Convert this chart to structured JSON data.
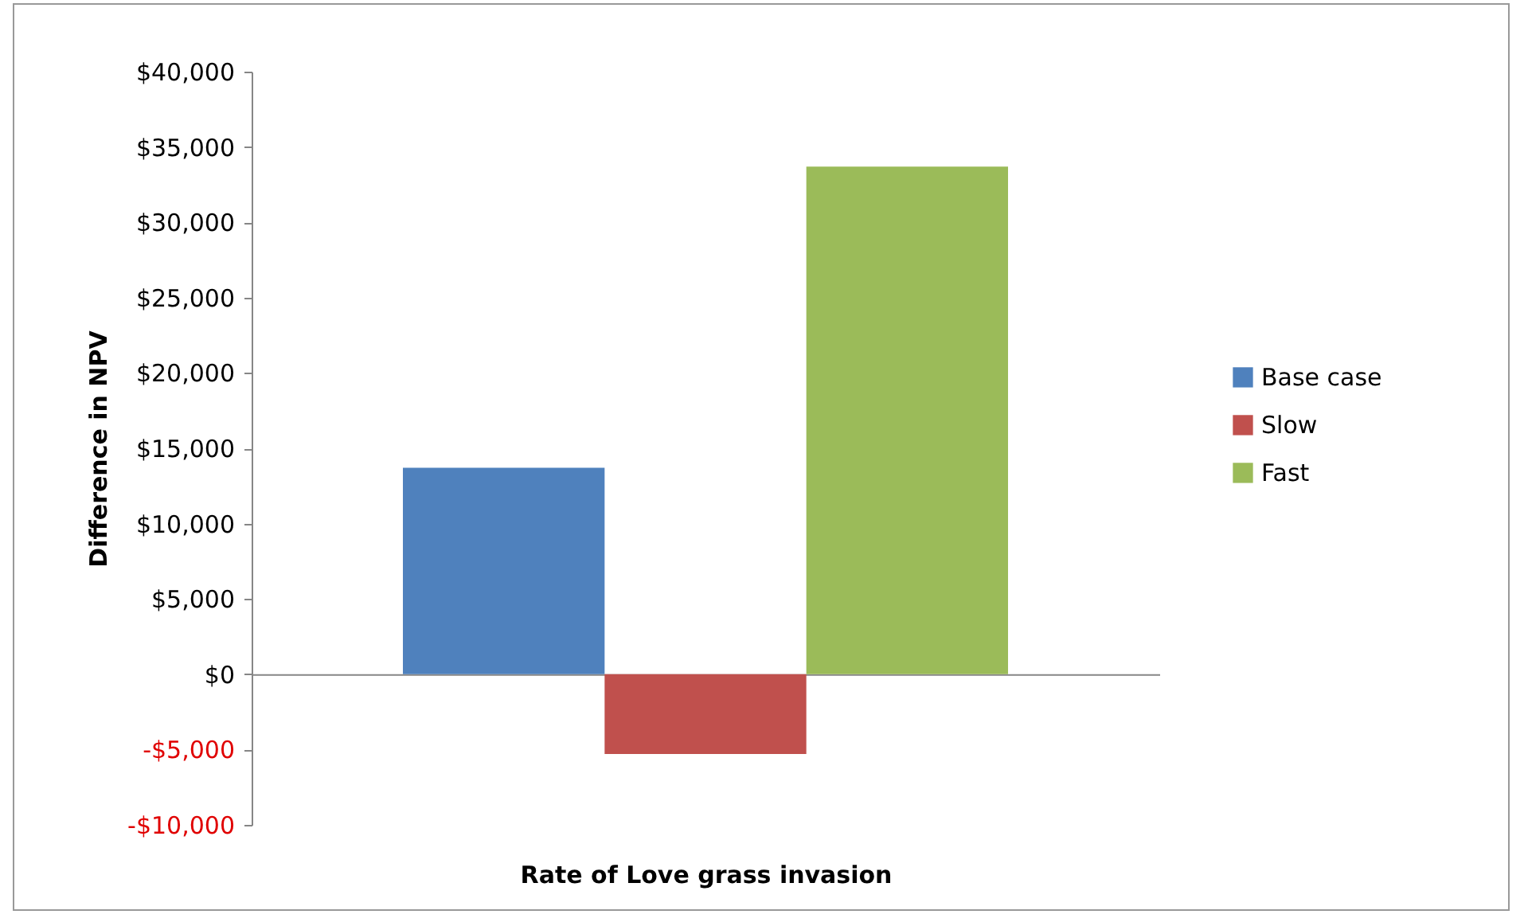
{
  "chart_data": {
    "type": "bar",
    "xlabel": "Rate of Love grass invasion",
    "ylabel": "Difference in NPV",
    "categories": [
      null
    ],
    "series": [
      {
        "name": "Base case",
        "color": "#4f81bd",
        "values": [
          13700
        ]
      },
      {
        "name": "Slow",
        "color": "#c0504d",
        "values": [
          -5300
        ]
      },
      {
        "name": "Fast",
        "color": "#9bbb59",
        "values": [
          33700
        ]
      }
    ],
    "ylim": [
      -10000,
      40000
    ],
    "yticks": [
      {
        "value": -10000,
        "label": "-$10,000"
      },
      {
        "value": -5000,
        "label": "-$5,000"
      },
      {
        "value": 0,
        "label": "$0"
      },
      {
        "value": 5000,
        "label": "$5,000"
      },
      {
        "value": 10000,
        "label": "$10,000"
      },
      {
        "value": 15000,
        "label": "$15,000"
      },
      {
        "value": 20000,
        "label": "$20,000"
      },
      {
        "value": 25000,
        "label": "$25,000"
      },
      {
        "value": 30000,
        "label": "$30,000"
      },
      {
        "value": 35000,
        "label": "$35,000"
      },
      {
        "value": 40000,
        "label": "$40,000"
      }
    ],
    "legend": "right"
  }
}
